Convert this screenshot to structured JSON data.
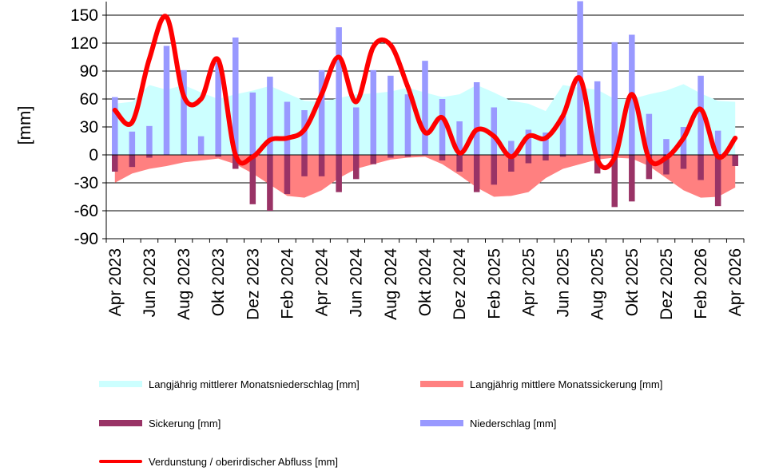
{
  "chart_data": {
    "type": "bar",
    "ylabel": "[mm]",
    "ylim": [
      -90,
      150
    ],
    "yticks": [
      150,
      120,
      90,
      60,
      30,
      0,
      -30,
      -60,
      -90
    ],
    "grid": true,
    "legend_position": "bottom",
    "categories": [
      "Apr 2023",
      "Mai 2023",
      "Jun 2023",
      "Jul 2023",
      "Aug 2023",
      "Sep 2023",
      "Okt 2023",
      "Nov 2023",
      "Dez 2023",
      "Jan 2024",
      "Feb 2024",
      "Mär 2024",
      "Apr 2024",
      "Mai 2024",
      "Jun 2024",
      "Jul 2024",
      "Aug 2024",
      "Sep 2024",
      "Okt 2024",
      "Nov 2024",
      "Dez 2024",
      "Jan 2025",
      "Feb 2025",
      "Mär 2025",
      "Apr 2025",
      "Mai 2025",
      "Jun 2025",
      "Jul 2025",
      "Aug 2025",
      "Sep 2025",
      "Okt 2025",
      "Nov 2025",
      "Dez 2025",
      "Jan 2026",
      "Feb 2026",
      "Mär 2026",
      "Apr 2026"
    ],
    "xtick_labels": [
      "Apr 2023",
      "Jun 2023",
      "Aug 2023",
      "Okt 2023",
      "Dez 2023",
      "Feb 2024",
      "Apr 2024",
      "Jun 2024",
      "Aug 2024",
      "Okt 2024",
      "Dez 2024",
      "Feb 2025",
      "Apr 2025",
      "Jun 2025",
      "Aug 2025",
      "Okt 2025",
      "Dez 2025",
      "Feb 2026",
      "Apr 2026"
    ],
    "series": [
      {
        "name": "Langjährig mittlerer Monatsniederschlag [mm]",
        "kind": "area",
        "color": "#ccffff",
        "values": [
          55,
          57,
          75,
          70,
          75,
          67,
          60,
          65,
          69,
          74,
          66,
          58,
          57,
          61,
          65,
          66,
          68,
          72,
          67,
          62,
          65,
          75,
          67,
          58,
          55,
          47,
          75,
          72,
          70,
          60,
          60,
          65,
          69,
          76,
          66,
          58,
          57
        ]
      },
      {
        "name": "Langjährig mittlere Monatssickerung [mm]",
        "kind": "area",
        "color": "#ff8080",
        "values": [
          -30,
          -20,
          -15,
          -12,
          -8,
          -6,
          -4,
          -10,
          -20,
          -32,
          -44,
          -46,
          -38,
          -25,
          -15,
          -10,
          -5,
          -3,
          -2,
          -10,
          -22,
          -35,
          -45,
          -44,
          -40,
          -25,
          -15,
          -10,
          -5,
          -3,
          -4,
          -12,
          -25,
          -38,
          -46,
          -45,
          -35
        ]
      },
      {
        "name": "Niederschlag [mm]",
        "kind": "bar",
        "color": "#9999ff",
        "values": [
          62,
          25,
          31,
          117,
          91,
          20,
          99,
          126,
          67,
          84,
          57,
          48,
          91,
          137,
          51,
          91,
          85,
          65,
          101,
          60,
          36,
          78,
          51,
          15,
          27,
          24,
          42,
          165,
          79,
          121,
          129,
          44,
          17,
          30,
          85,
          26,
          0
        ]
      },
      {
        "name": "Sickerung [mm]",
        "kind": "bar",
        "color": "#993366",
        "values": [
          -18,
          -13,
          -3,
          0,
          0,
          0,
          -2,
          -15,
          -53,
          -60,
          -42,
          -23,
          -23,
          -40,
          -26,
          -10,
          -3,
          -2,
          0,
          -6,
          -18,
          -40,
          -32,
          -18,
          -9,
          -6,
          -2,
          0,
          -20,
          -56,
          -50,
          -26,
          -21,
          -15,
          -27,
          -55,
          -12
        ]
      },
      {
        "name": "Verdunstung / oberirdischer Abfluss [mm]",
        "kind": "line",
        "color": "#ff0000",
        "values": [
          48,
          35,
          103,
          148,
          63,
          60,
          102,
          0,
          -2,
          16,
          18,
          27,
          65,
          105,
          57,
          116,
          118,
          73,
          24,
          40,
          2,
          27,
          20,
          -2,
          20,
          18,
          42,
          82,
          -5,
          -3,
          65,
          -4,
          -3,
          18,
          49,
          -2,
          18
        ]
      }
    ]
  },
  "legend": [
    {
      "label": "Langjährig mittlerer Monatsniederschlag [mm]",
      "color": "#ccffff",
      "kind": "area"
    },
    {
      "label": "Langjährig mittlere Monatssickerung [mm]",
      "color": "#ff8080",
      "kind": "area"
    },
    {
      "label": "Sickerung [mm]",
      "color": "#993366",
      "kind": "bar"
    },
    {
      "label": "Niederschlag [mm]",
      "color": "#9999ff",
      "kind": "bar"
    },
    {
      "label": "Verdunstung / oberirdischer Abfluss [mm]",
      "color": "#ff0000",
      "kind": "line"
    }
  ]
}
